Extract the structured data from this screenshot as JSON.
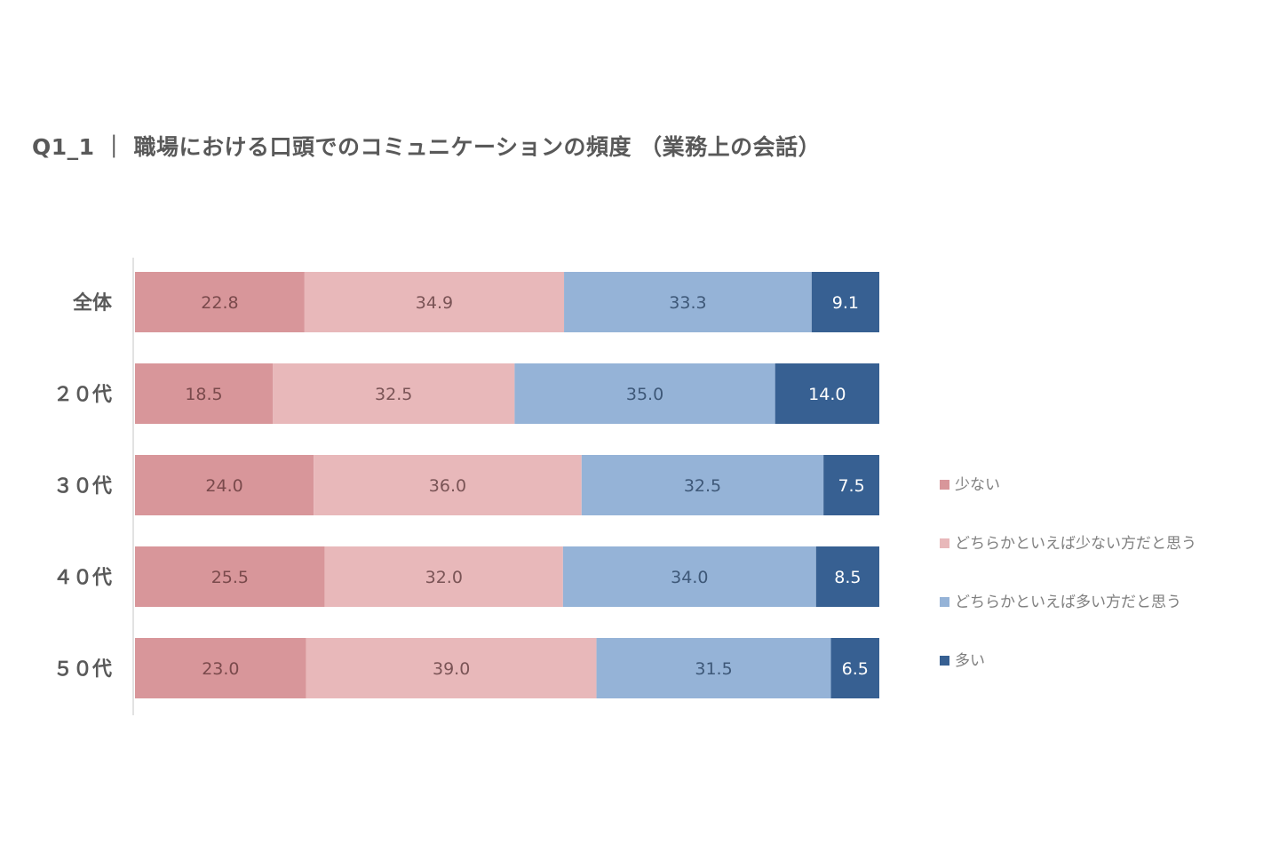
{
  "title": "Q1_1 ｜ 職場における口頭でのコミュニケーションの頻度 （業務上の会話）",
  "chart_data": {
    "type": "bar",
    "orientation": "horizontal",
    "stacked": "percent",
    "title": "Q1_1 ｜ 職場における口頭でのコミュニケーションの頻度 （業務上の会話）",
    "categories": [
      "全体",
      "２０代",
      "３０代",
      "４０代",
      "５０代"
    ],
    "series": [
      {
        "name": "少ない",
        "color": "#d8969a",
        "label_color": "#7a4a4c",
        "values": [
          22.8,
          18.5,
          24.0,
          25.5,
          23.0
        ]
      },
      {
        "name": "どちらかといえば少ない方だと思う",
        "color": "#e8b8ba",
        "label_color": "#7a5456",
        "values": [
          34.9,
          32.5,
          36.0,
          32.0,
          39.0
        ]
      },
      {
        "name": "どちらかといえば多い方だと思う",
        "color": "#95b3d7",
        "label_color": "#3e5878",
        "values": [
          33.3,
          35.0,
          32.5,
          34.0,
          31.5
        ]
      },
      {
        "name": "多い",
        "color": "#376092",
        "label_color": "#ffffff",
        "values": [
          9.1,
          14.0,
          7.5,
          8.5,
          6.5
        ]
      }
    ],
    "xlim": [
      0,
      100
    ],
    "grid": false,
    "legend_position": "right"
  }
}
